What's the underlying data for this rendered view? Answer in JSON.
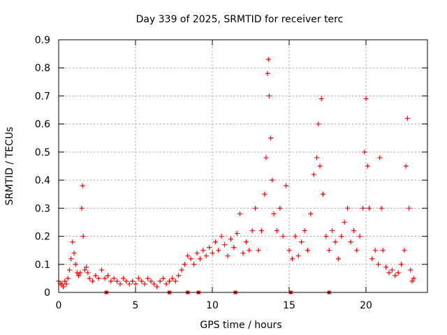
{
  "chart_data": {
    "type": "scatter",
    "title": "Day 339 of 2025, SRMTID for receiver terc",
    "xlabel": "GPS time / hours",
    "ylabel": "SRMTID / TECUs",
    "xlim": [
      0,
      24
    ],
    "ylim": [
      0,
      0.9
    ],
    "xticks": [
      "0",
      "5",
      "10",
      "15",
      "20"
    ],
    "xtick_values": [
      0,
      5,
      10,
      15,
      20
    ],
    "yticks": [
      "0",
      "0.1",
      "0.2",
      "0.3",
      "0.4",
      "0.5",
      "0.6",
      "0.7",
      "0.8",
      "0.9"
    ],
    "ytick_values": [
      0,
      0.1,
      0.2,
      0.3,
      0.4,
      0.5,
      0.6,
      0.7,
      0.8,
      0.9
    ],
    "grid": true,
    "marker": "+",
    "color": "#ff0000",
    "series": [
      {
        "name": "SRMTID",
        "points": [
          [
            0.0,
            0.04
          ],
          [
            0.1,
            0.03
          ],
          [
            0.2,
            0.03
          ],
          [
            0.3,
            0.02
          ],
          [
            0.4,
            0.04
          ],
          [
            0.5,
            0.03
          ],
          [
            0.6,
            0.05
          ],
          [
            0.7,
            0.08
          ],
          [
            0.8,
            0.12
          ],
          [
            0.9,
            0.18
          ],
          [
            1.0,
            0.14
          ],
          [
            1.1,
            0.1
          ],
          [
            1.2,
            0.07
          ],
          [
            1.3,
            0.06
          ],
          [
            1.4,
            0.07
          ],
          [
            1.5,
            0.3
          ],
          [
            1.55,
            0.38
          ],
          [
            1.6,
            0.2
          ],
          [
            1.7,
            0.08
          ],
          [
            1.8,
            0.09
          ],
          [
            1.9,
            0.07
          ],
          [
            2.0,
            0.05
          ],
          [
            2.2,
            0.04
          ],
          [
            2.4,
            0.06
          ],
          [
            2.6,
            0.05
          ],
          [
            2.8,
            0.08
          ],
          [
            3.0,
            0.05
          ],
          [
            3.2,
            0.06
          ],
          [
            3.4,
            0.04
          ],
          [
            3.6,
            0.05
          ],
          [
            3.8,
            0.04
          ],
          [
            4.0,
            0.03
          ],
          [
            4.2,
            0.05
          ],
          [
            4.4,
            0.04
          ],
          [
            4.6,
            0.03
          ],
          [
            4.8,
            0.04
          ],
          [
            5.0,
            0.03
          ],
          [
            5.2,
            0.05
          ],
          [
            5.4,
            0.04
          ],
          [
            5.6,
            0.03
          ],
          [
            5.8,
            0.05
          ],
          [
            6.0,
            0.04
          ],
          [
            6.2,
            0.03
          ],
          [
            6.4,
            0.02
          ],
          [
            6.6,
            0.04
          ],
          [
            6.8,
            0.05
          ],
          [
            7.0,
            0.03
          ],
          [
            7.2,
            0.04
          ],
          [
            7.4,
            0.05
          ],
          [
            7.6,
            0.04
          ],
          [
            7.8,
            0.06
          ],
          [
            8.0,
            0.08
          ],
          [
            8.2,
            0.1
          ],
          [
            8.4,
            0.13
          ],
          [
            8.6,
            0.12
          ],
          [
            8.8,
            0.1
          ],
          [
            9.0,
            0.14
          ],
          [
            9.2,
            0.12
          ],
          [
            9.4,
            0.15
          ],
          [
            9.6,
            0.13
          ],
          [
            9.8,
            0.16
          ],
          [
            10.0,
            0.14
          ],
          [
            10.2,
            0.18
          ],
          [
            10.4,
            0.15
          ],
          [
            10.6,
            0.2
          ],
          [
            10.8,
            0.17
          ],
          [
            11.0,
            0.13
          ],
          [
            11.2,
            0.19
          ],
          [
            11.4,
            0.16
          ],
          [
            11.6,
            0.21
          ],
          [
            11.8,
            0.28
          ],
          [
            12.0,
            0.14
          ],
          [
            12.2,
            0.18
          ],
          [
            12.4,
            0.15
          ],
          [
            12.6,
            0.22
          ],
          [
            12.8,
            0.3
          ],
          [
            13.0,
            0.15
          ],
          [
            13.2,
            0.22
          ],
          [
            13.4,
            0.35
          ],
          [
            13.5,
            0.48
          ],
          [
            13.6,
            0.78
          ],
          [
            13.65,
            0.83
          ],
          [
            13.7,
            0.7
          ],
          [
            13.8,
            0.55
          ],
          [
            13.9,
            0.4
          ],
          [
            14.0,
            0.28
          ],
          [
            14.2,
            0.22
          ],
          [
            14.4,
            0.3
          ],
          [
            14.6,
            0.2
          ],
          [
            14.8,
            0.38
          ],
          [
            15.0,
            0.15
          ],
          [
            15.2,
            0.12
          ],
          [
            15.4,
            0.2
          ],
          [
            15.6,
            0.13
          ],
          [
            15.8,
            0.18
          ],
          [
            16.0,
            0.22
          ],
          [
            16.2,
            0.15
          ],
          [
            16.4,
            0.28
          ],
          [
            16.6,
            0.42
          ],
          [
            16.8,
            0.48
          ],
          [
            16.9,
            0.6
          ],
          [
            17.0,
            0.45
          ],
          [
            17.1,
            0.69
          ],
          [
            17.2,
            0.35
          ],
          [
            17.4,
            0.2
          ],
          [
            17.6,
            0.15
          ],
          [
            17.8,
            0.22
          ],
          [
            18.0,
            0.18
          ],
          [
            18.2,
            0.12
          ],
          [
            18.4,
            0.2
          ],
          [
            18.6,
            0.25
          ],
          [
            18.8,
            0.3
          ],
          [
            19.0,
            0.18
          ],
          [
            19.2,
            0.22
          ],
          [
            19.4,
            0.15
          ],
          [
            19.6,
            0.2
          ],
          [
            19.8,
            0.3
          ],
          [
            19.9,
            0.5
          ],
          [
            20.0,
            0.69
          ],
          [
            20.1,
            0.45
          ],
          [
            20.2,
            0.3
          ],
          [
            20.4,
            0.12
          ],
          [
            20.6,
            0.15
          ],
          [
            20.8,
            0.1
          ],
          [
            20.9,
            0.48
          ],
          [
            21.0,
            0.3
          ],
          [
            21.1,
            0.15
          ],
          [
            21.3,
            0.09
          ],
          [
            21.5,
            0.07
          ],
          [
            21.7,
            0.08
          ],
          [
            21.9,
            0.06
          ],
          [
            22.1,
            0.07
          ],
          [
            22.3,
            0.1
          ],
          [
            22.5,
            0.15
          ],
          [
            22.6,
            0.45
          ],
          [
            22.7,
            0.62
          ],
          [
            22.8,
            0.3
          ],
          [
            22.9,
            0.08
          ],
          [
            23.0,
            0.04
          ],
          [
            23.1,
            0.05
          ]
        ]
      }
    ],
    "zero_markers_x": [
      3.1,
      7.2,
      8.4,
      9.1,
      11.5,
      15.1,
      17.6
    ]
  }
}
